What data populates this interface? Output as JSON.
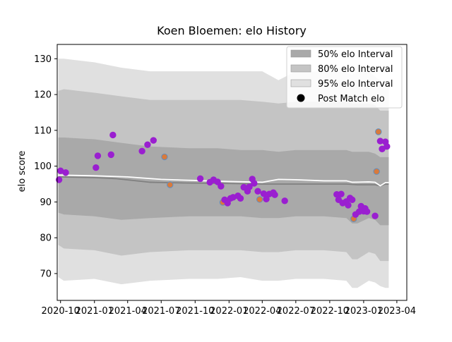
{
  "chart_data": {
    "type": "area",
    "title": "Koen Bloemen: elo History",
    "xlabel": "",
    "ylabel": "elo score",
    "ylim": [
      62.5,
      134
    ],
    "xlim": [
      "2020-09-22",
      "2023-04-28"
    ],
    "yticks": [
      70,
      80,
      90,
      100,
      110,
      120,
      130
    ],
    "xticks": [
      {
        "date": "2020-10-01",
        "label": "2020-10"
      },
      {
        "date": "2021-01-01",
        "label": "2021-01"
      },
      {
        "date": "2021-04-01",
        "label": "2021-04"
      },
      {
        "date": "2021-07-01",
        "label": "2021-07"
      },
      {
        "date": "2021-10-01",
        "label": "2021-10"
      },
      {
        "date": "2022-01-01",
        "label": "2022-01"
      },
      {
        "date": "2022-04-01",
        "label": "2022-04"
      },
      {
        "date": "2022-07-01",
        "label": "2022-07"
      },
      {
        "date": "2022-10-01",
        "label": "2022-10"
      },
      {
        "date": "2023-01-01",
        "label": "2023-01"
      },
      {
        "date": "2023-04-01",
        "label": "2023-04"
      }
    ],
    "legend": {
      "position": "top-right",
      "entries": [
        "50% elo Interval",
        "80% elo Interval",
        "95% elo Interval",
        "Post Match elo"
      ]
    },
    "colors": {
      "band50": "#a9a9a9",
      "band80": "#c4c4c4",
      "band95": "#e0e0e0",
      "median_line": "#808080",
      "mean_line": "#ffffff",
      "point_fill": "#9a1fd0",
      "point_fill_alt": "#d87a3c",
      "point_edge": "#5d8fc4"
    },
    "series": [
      {
        "name": "95% elo Interval",
        "x": [
          "2020-09-25",
          "2020-10-10",
          "2021-01-01",
          "2021-03-15",
          "2021-06-01",
          "2021-09-15",
          "2021-12-01",
          "2022-02-01",
          "2022-04-01",
          "2022-05-15",
          "2022-07-01",
          "2022-09-15",
          "2022-11-15",
          "2022-12-01",
          "2022-12-15",
          "2023-01-15",
          "2023-02-01",
          "2023-02-15",
          "2023-03-01",
          "2023-03-10"
        ],
        "upper": [
          130,
          130,
          129,
          127.5,
          126.5,
          126.5,
          126.5,
          126.5,
          126.5,
          124,
          126.5,
          126.5,
          126.5,
          125.5,
          126.5,
          126.5,
          125,
          124,
          123,
          123
        ],
        "lower": [
          69,
          68,
          68.5,
          67,
          68,
          68.5,
          68.5,
          69,
          68,
          68,
          68.5,
          68.5,
          68,
          66,
          66,
          68,
          67.5,
          66.5,
          66,
          66
        ]
      },
      {
        "name": "80% elo Interval",
        "x": [
          "2020-09-25",
          "2020-10-10",
          "2021-01-01",
          "2021-03-15",
          "2021-06-01",
          "2021-09-15",
          "2021-12-01",
          "2022-02-01",
          "2022-04-01",
          "2022-05-15",
          "2022-07-01",
          "2022-09-15",
          "2022-11-15",
          "2022-12-01",
          "2022-12-15",
          "2023-01-15",
          "2023-02-01",
          "2023-02-15",
          "2023-03-01",
          "2023-03-10"
        ],
        "upper": [
          121,
          121.5,
          120.5,
          119.5,
          118.5,
          118.5,
          118.5,
          118.5,
          118,
          117.5,
          118,
          118,
          118,
          117.5,
          117.5,
          117.5,
          117,
          115.5,
          115.5,
          115.5
        ],
        "lower": [
          78,
          77,
          76.5,
          75,
          76,
          76.5,
          76.5,
          76.5,
          76,
          76,
          76.5,
          76.5,
          76,
          74,
          74,
          76,
          75.5,
          73.5,
          73.5,
          73.5
        ]
      },
      {
        "name": "50% elo Interval",
        "x": [
          "2020-09-25",
          "2020-10-10",
          "2021-01-01",
          "2021-03-15",
          "2021-06-01",
          "2021-09-15",
          "2021-12-01",
          "2022-02-01",
          "2022-04-01",
          "2022-05-15",
          "2022-07-01",
          "2022-09-15",
          "2022-11-15",
          "2022-12-01",
          "2022-12-15",
          "2023-01-15",
          "2023-02-01",
          "2023-02-15",
          "2023-03-01",
          "2023-03-10"
        ],
        "upper": [
          108,
          108,
          107.5,
          106.5,
          105.5,
          105,
          105,
          104.5,
          104.5,
          104,
          104.5,
          104.5,
          104.5,
          104,
          104,
          104,
          103.5,
          102.5,
          102.5,
          102.5
        ],
        "lower": [
          87,
          86.5,
          86,
          85,
          85.5,
          86,
          86,
          86,
          85.5,
          85.5,
          86,
          86,
          85.5,
          84,
          84,
          85.5,
          85,
          83.5,
          83.5,
          83.5
        ]
      },
      {
        "name": "median",
        "x": [
          "2020-09-25",
          "2021-01-01",
          "2021-03-01",
          "2021-06-01",
          "2021-09-01",
          "2021-12-01",
          "2022-02-01",
          "2022-04-01",
          "2022-07-01",
          "2022-09-15",
          "2022-11-15",
          "2022-12-15",
          "2023-01-15",
          "2023-02-01",
          "2023-02-15",
          "2023-03-01",
          "2023-03-10"
        ],
        "y": [
          97,
          96.8,
          96.5,
          95.5,
          95.3,
          95.2,
          95.1,
          95.0,
          95.0,
          95.0,
          95.0,
          94.8,
          94.8,
          94.8,
          94.5,
          95.0,
          95.0
        ]
      },
      {
        "name": "mean",
        "x": [
          "2020-09-25",
          "2021-01-01",
          "2021-04-01",
          "2021-07-01",
          "2021-10-01",
          "2022-01-01",
          "2022-04-01",
          "2022-05-15",
          "2022-07-01",
          "2022-09-15",
          "2022-11-15",
          "2022-12-01",
          "2023-01-15",
          "2023-02-01",
          "2023-02-15",
          "2023-03-01",
          "2023-03-10"
        ],
        "y": [
          97.5,
          97.3,
          97.0,
          96.3,
          96.0,
          95.7,
          95.5,
          96.3,
          96.2,
          95.9,
          95.9,
          95.5,
          95.6,
          95.5,
          94.5,
          95.4,
          95.4
        ]
      }
    ],
    "points": {
      "name": "Post Match elo",
      "x": [
        "2020-09-27",
        "2020-10-01",
        "2020-10-15",
        "2021-01-05",
        "2021-01-10",
        "2021-02-15",
        "2021-02-20",
        "2021-05-10",
        "2021-05-25",
        "2021-06-10",
        "2021-07-10",
        "2021-07-25",
        "2021-10-15",
        "2021-11-10",
        "2021-11-20",
        "2021-12-01",
        "2021-12-10",
        "2021-12-15",
        "2021-12-20",
        "2021-12-28",
        "2022-01-05",
        "2022-01-12",
        "2022-01-25",
        "2022-02-01",
        "2022-02-10",
        "2022-02-20",
        "2022-02-25",
        "2022-03-05",
        "2022-03-10",
        "2022-03-20",
        "2022-03-25",
        "2022-04-05",
        "2022-04-12",
        "2022-04-20",
        "2022-05-01",
        "2022-05-05",
        "2022-06-01",
        "2022-10-20",
        "2022-10-25",
        "2022-11-01",
        "2022-11-05",
        "2022-11-15",
        "2022-11-20",
        "2022-11-25",
        "2022-12-01",
        "2022-12-05",
        "2022-12-10",
        "2022-12-20",
        "2022-12-25",
        "2023-01-01",
        "2023-01-05",
        "2023-01-10",
        "2023-02-01",
        "2023-02-05",
        "2023-02-10",
        "2023-02-15",
        "2023-02-20",
        "2023-03-01",
        "2023-03-05"
      ],
      "y": [
        96.2,
        98.7,
        98.2,
        99.6,
        102.9,
        103.2,
        108.7,
        104.2,
        106.0,
        107.2,
        102.6,
        94.8,
        96.5,
        95.5,
        96.2,
        95.6,
        94.4,
        89.9,
        90.6,
        89.7,
        91.0,
        91.3,
        91.7,
        91.0,
        94.1,
        93.0,
        94.2,
        96.4,
        95.2,
        93.0,
        90.7,
        92.3,
        90.8,
        92.2,
        92.6,
        92.0,
        90.3,
        92.1,
        90.6,
        92.2,
        89.7,
        90.1,
        89.1,
        91.1,
        90.6,
        85.3,
        86.5,
        87.3,
        88.8,
        87.4,
        88.2,
        87.3,
        86.1,
        98.5,
        109.6,
        107.0,
        104.8,
        106.8,
        105.5
      ],
      "alt_indices": [
        10,
        11,
        17,
        30,
        45,
        53,
        54
      ]
    }
  }
}
